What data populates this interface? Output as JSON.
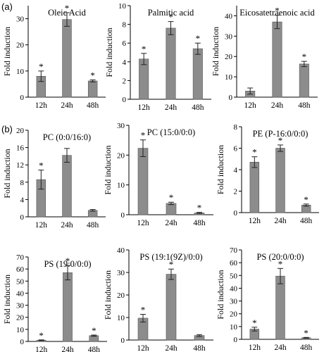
{
  "panel_labels": [
    "(a)",
    "(b)"
  ],
  "chart_data": [
    {
      "type": "bar",
      "title": "Oleic Acid",
      "ylabel": "Fold induction",
      "categories": [
        "12h",
        "24h",
        "48h"
      ],
      "values": [
        8.0,
        29.7,
        6.2
      ],
      "errors": [
        2.0,
        2.6,
        0.4
      ],
      "significant": [
        true,
        true,
        true
      ],
      "ylim": [
        0,
        35
      ],
      "yticks": [
        0,
        10,
        20,
        30
      ],
      "marker": "*"
    },
    {
      "type": "bar",
      "title": "Palmitic acid",
      "ylabel": "Fold induction",
      "categories": [
        "12h",
        "24h",
        "48h"
      ],
      "values": [
        4.3,
        7.6,
        5.4
      ],
      "errors": [
        0.6,
        0.7,
        0.6
      ],
      "significant": [
        true,
        true,
        true
      ],
      "ylim": [
        0,
        10
      ],
      "yticks": [
        0,
        2,
        4,
        6,
        8,
        10
      ],
      "marker": "*"
    },
    {
      "type": "bar",
      "title": "Eicosatetraenoic acid",
      "ylabel": "Fold induction",
      "categories": [
        "12h",
        "24h",
        "48h"
      ],
      "values": [
        3.0,
        37.0,
        16.3
      ],
      "errors": [
        1.5,
        3.3,
        1.3
      ],
      "significant": [
        false,
        true,
        true
      ],
      "ylim": [
        0,
        45
      ],
      "yticks": [
        0,
        10,
        20,
        30,
        40
      ],
      "marker": "*"
    },
    {
      "type": "bar",
      "title": "PC (0:0/16:0)",
      "ylabel": "Fold induction",
      "categories": [
        "12h",
        "24h",
        "48h"
      ],
      "values": [
        8.6,
        14.2,
        1.5
      ],
      "errors": [
        2.2,
        1.6,
        0.2
      ],
      "significant": [
        true,
        false,
        false
      ],
      "ylim": [
        0,
        20
      ],
      "yticks": [
        0,
        4,
        8,
        12,
        16,
        20
      ],
      "marker": "*"
    },
    {
      "type": "bar",
      "title": "PC (15:0/0:0)",
      "ylabel": "Fold induction",
      "categories": [
        "12h",
        "24h",
        "48h"
      ],
      "values": [
        22.3,
        3.8,
        0.6
      ],
      "errors": [
        2.8,
        0.4,
        0.2
      ],
      "significant": [
        true,
        true,
        true
      ],
      "ylim": [
        0,
        30
      ],
      "yticks": [
        0,
        10,
        20,
        30
      ],
      "marker": "*"
    },
    {
      "type": "bar",
      "title": "PE (P-16:0/0:0)",
      "ylabel": "Fold induction",
      "categories": [
        "12h",
        "24h",
        "48h"
      ],
      "values": [
        4.7,
        6.0,
        0.7
      ],
      "errors": [
        0.5,
        0.3,
        0.1
      ],
      "significant": [
        true,
        true,
        true
      ],
      "ylim": [
        0,
        8
      ],
      "yticks": [
        0,
        2,
        4,
        6,
        8
      ],
      "marker": "*"
    },
    {
      "type": "bar",
      "title": "PS (19:0/0:0)",
      "ylabel": "Fold induction",
      "categories": [
        "12h",
        "24h",
        "48h"
      ],
      "values": [
        1.0,
        57.0,
        4.8
      ],
      "errors": [
        0.3,
        6.0,
        0.5
      ],
      "significant": [
        true,
        true,
        true
      ],
      "ylim": [
        0,
        70
      ],
      "yticks": [
        0,
        10,
        20,
        30,
        40,
        50,
        60,
        70
      ],
      "marker": "*"
    },
    {
      "type": "bar",
      "title": "PS (19:1(9Z)/0:0)",
      "ylabel": "Fold induction",
      "categories": [
        "12h",
        "24h",
        "48h"
      ],
      "values": [
        9.7,
        29.2,
        2.0
      ],
      "errors": [
        1.7,
        2.3,
        0.4
      ],
      "significant": [
        true,
        true,
        false
      ],
      "ylim": [
        0,
        40
      ],
      "yticks": [
        0,
        10,
        20,
        30,
        40
      ],
      "marker": "*"
    },
    {
      "type": "bar",
      "title": "PS (20:0/0:0)",
      "ylabel": "Fold induction",
      "categories": [
        "12h",
        "24h",
        "48h"
      ],
      "values": [
        8.0,
        49.5,
        1.2
      ],
      "errors": [
        1.5,
        6.0,
        0.3
      ],
      "significant": [
        true,
        true,
        true
      ],
      "ylim": [
        0,
        70
      ],
      "yticks": [
        0,
        10,
        20,
        30,
        40,
        50,
        60,
        70
      ],
      "marker": "*"
    }
  ],
  "colors": {
    "bar": "#8c8c8c",
    "axis": "#000000"
  }
}
